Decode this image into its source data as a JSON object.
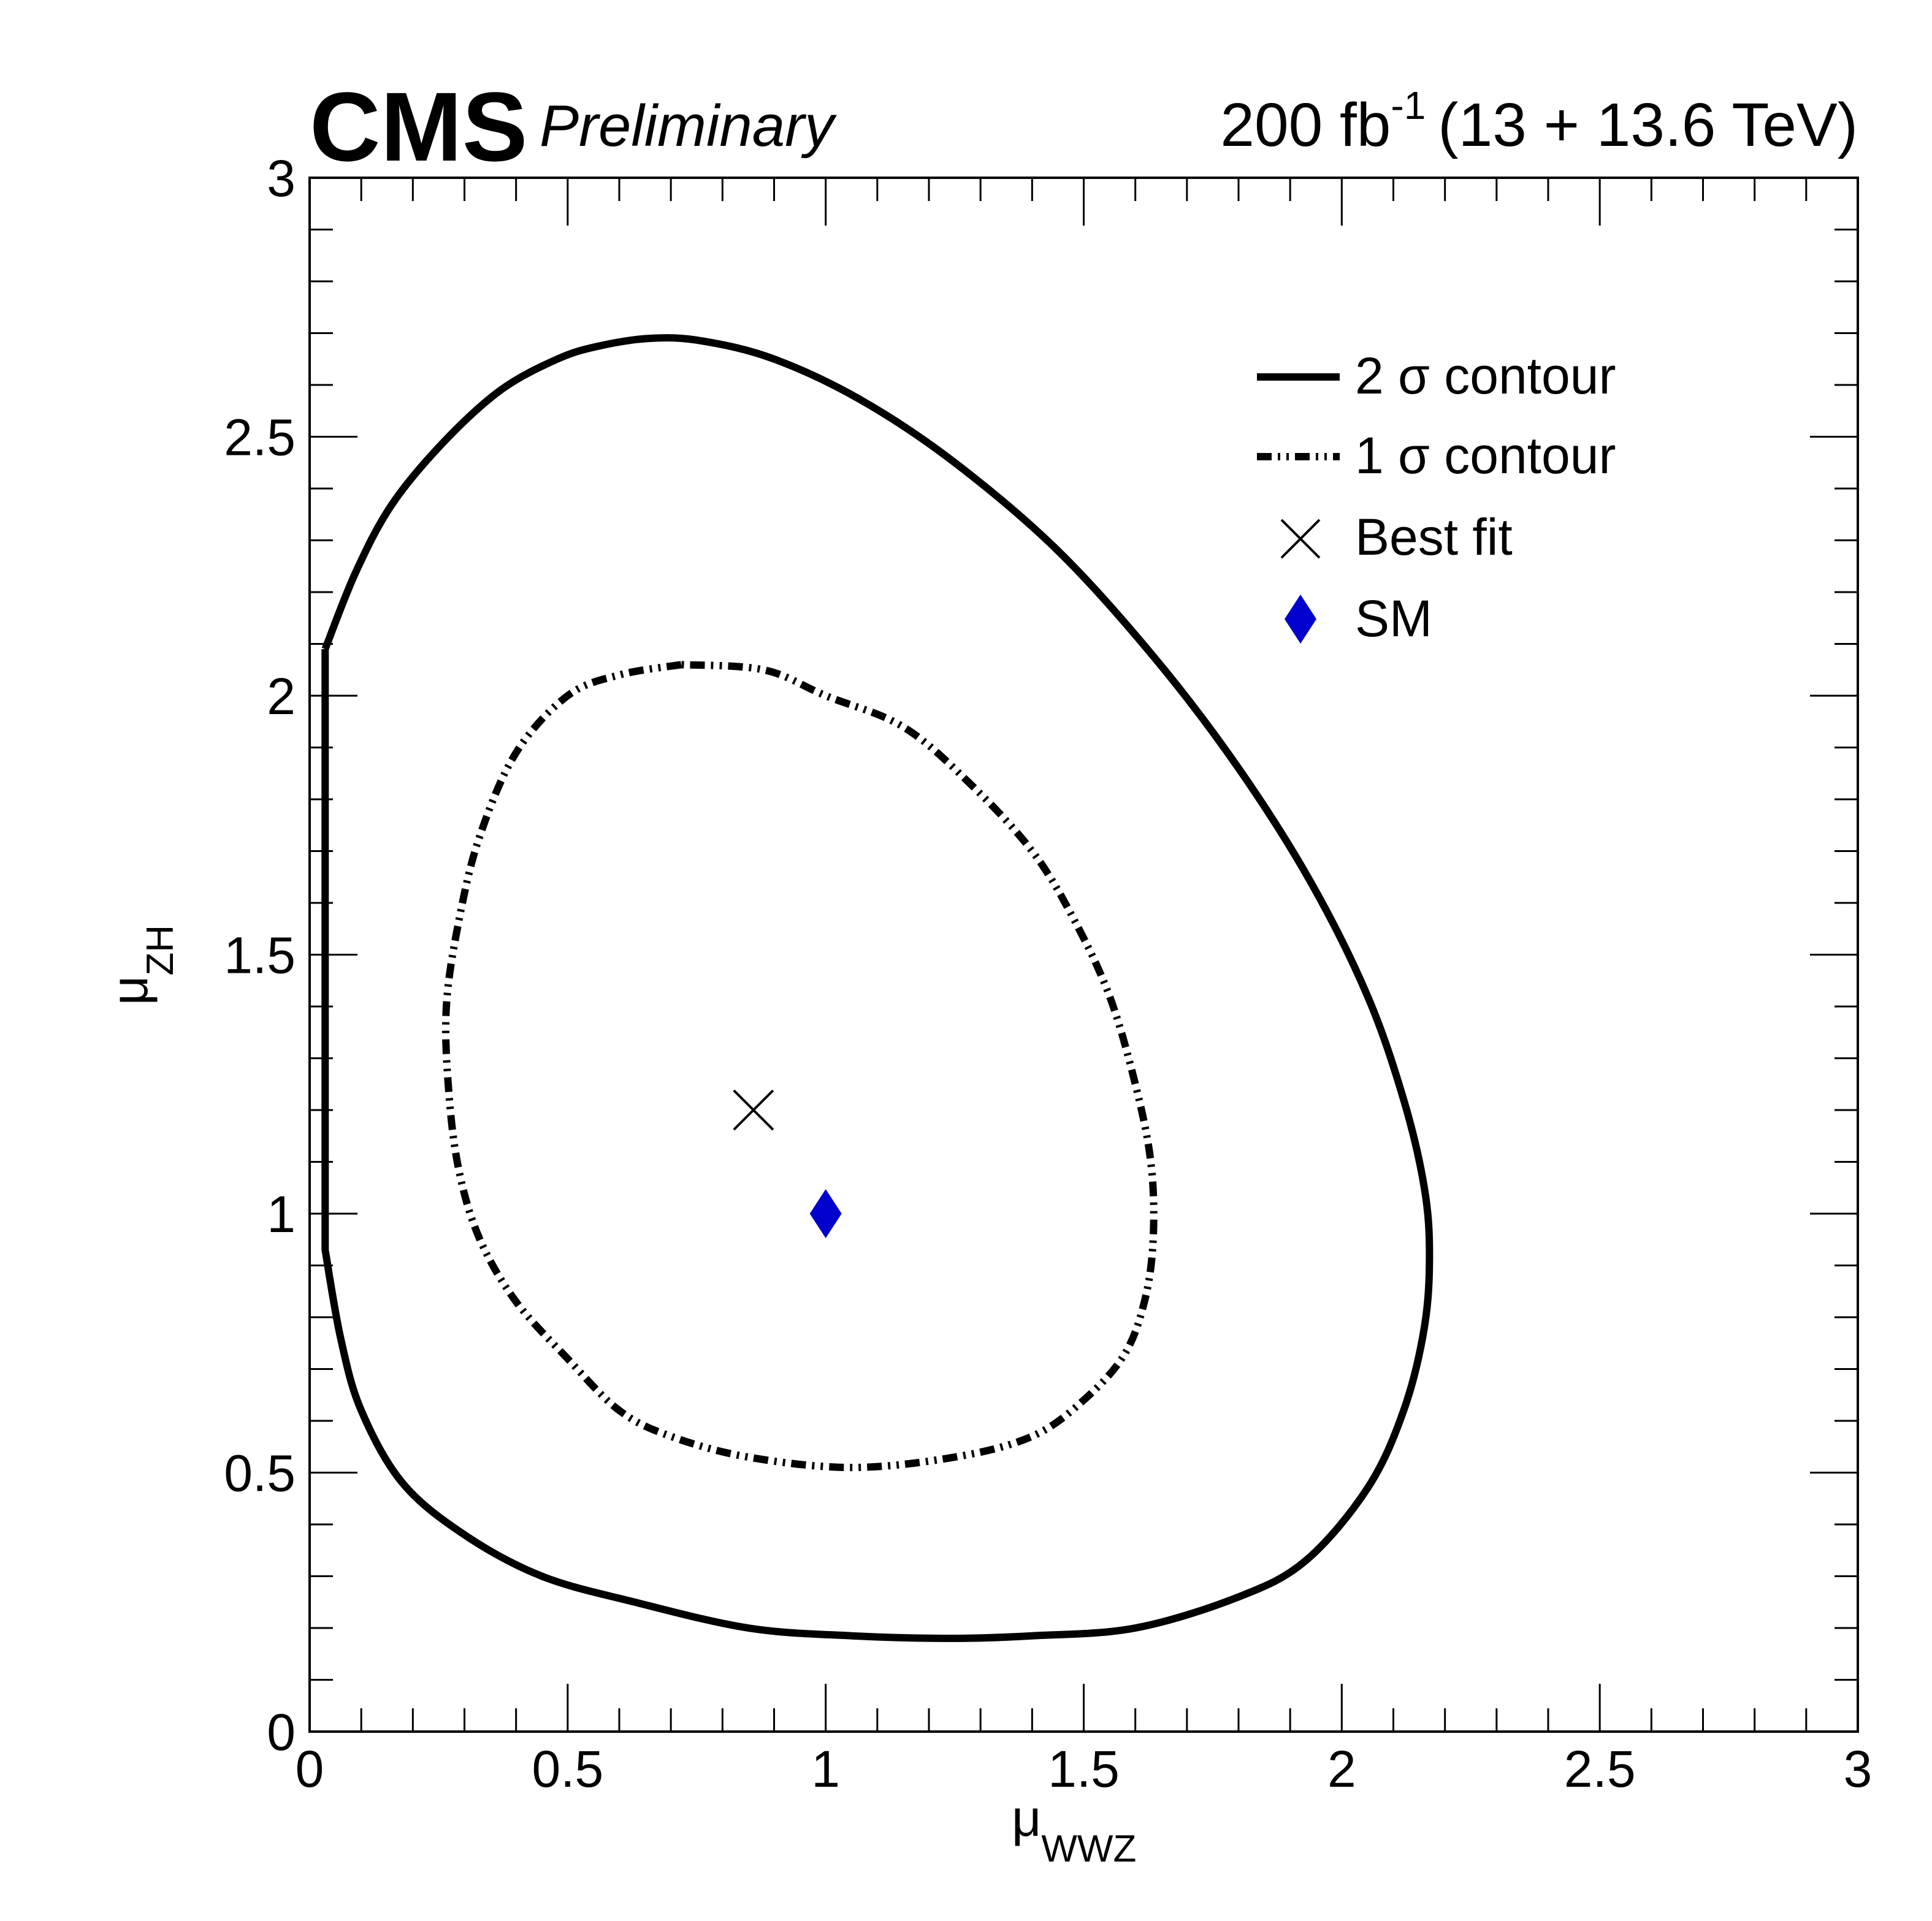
{
  "header": {
    "experiment": "CMS",
    "status": "Preliminary",
    "lumi_value": "200 fb",
    "lumi_exponent": "-1",
    "lumi_energy": "(13 + 13.6 TeV)"
  },
  "chart_data": {
    "type": "contour",
    "xlabel": {
      "symbol": "μ",
      "subscript": "WWZ"
    },
    "ylabel": {
      "symbol": "μ",
      "subscript": "ZH"
    },
    "xlim": [
      0,
      3
    ],
    "ylim": [
      0,
      3
    ],
    "x_ticks": [
      "0",
      "0.5",
      "1",
      "1.5",
      "2",
      "2.5",
      "3"
    ],
    "y_ticks": [
      "0",
      "0.5",
      "1",
      "1.5",
      "2",
      "2.5",
      "3"
    ],
    "x_tick_values": [
      0,
      0.5,
      1,
      1.5,
      2,
      2.5,
      3
    ],
    "y_tick_values": [
      0,
      0.5,
      1,
      1.5,
      2,
      2.5,
      3
    ],
    "minor_tick_step": 0.1,
    "legend_position": "top-right",
    "legend": [
      {
        "label": "2 σ contour",
        "style": "solid"
      },
      {
        "label": "1 σ contour",
        "style": "dash-dot-dot"
      },
      {
        "label": "Best fit",
        "style": "cross-marker"
      },
      {
        "label": "SM",
        "style": "diamond-marker"
      }
    ],
    "colors": {
      "contour": "#000000",
      "sm_marker": "#0000cc"
    },
    "series": [
      {
        "name": "2 σ contour",
        "style": "solid",
        "points": [
          [
            0.03,
            2.09
          ],
          [
            0.09,
            2.24
          ],
          [
            0.16,
            2.37
          ],
          [
            0.26,
            2.49
          ],
          [
            0.37,
            2.59
          ],
          [
            0.48,
            2.65
          ],
          [
            0.56,
            2.675
          ],
          [
            0.66,
            2.69
          ],
          [
            0.76,
            2.685
          ],
          [
            0.9,
            2.65
          ],
          [
            1.07,
            2.57
          ],
          [
            1.25,
            2.45
          ],
          [
            1.45,
            2.28
          ],
          [
            1.64,
            2.07
          ],
          [
            1.8,
            1.86
          ],
          [
            1.94,
            1.64
          ],
          [
            2.05,
            1.42
          ],
          [
            2.12,
            1.22
          ],
          [
            2.16,
            1.05
          ],
          [
            2.17,
            0.92
          ],
          [
            2.16,
            0.78
          ],
          [
            2.12,
            0.62
          ],
          [
            2.05,
            0.47
          ],
          [
            1.93,
            0.33
          ],
          [
            1.8,
            0.26
          ],
          [
            1.6,
            0.2
          ],
          [
            1.4,
            0.185
          ],
          [
            1.24,
            0.18
          ],
          [
            1.05,
            0.185
          ],
          [
            0.85,
            0.2
          ],
          [
            0.63,
            0.25
          ],
          [
            0.45,
            0.3
          ],
          [
            0.3,
            0.38
          ],
          [
            0.18,
            0.48
          ],
          [
            0.1,
            0.62
          ],
          [
            0.06,
            0.76
          ],
          [
            0.03,
            0.93
          ],
          [
            0.03,
            2.09
          ]
        ]
      },
      {
        "name": "1 σ contour",
        "style": "dash-dot-dot",
        "points": [
          [
            0.72,
            2.06
          ],
          [
            0.6,
            2.04
          ],
          [
            0.5,
            2.0
          ],
          [
            0.4,
            1.89
          ],
          [
            0.33,
            1.73
          ],
          [
            0.29,
            1.57
          ],
          [
            0.265,
            1.4
          ],
          [
            0.27,
            1.23
          ],
          [
            0.29,
            1.08
          ],
          [
            0.33,
            0.95
          ],
          [
            0.4,
            0.83
          ],
          [
            0.5,
            0.72
          ],
          [
            0.6,
            0.62
          ],
          [
            0.7,
            0.57
          ],
          [
            0.85,
            0.53
          ],
          [
            1.05,
            0.51
          ],
          [
            1.25,
            0.53
          ],
          [
            1.4,
            0.57
          ],
          [
            1.5,
            0.64
          ],
          [
            1.58,
            0.73
          ],
          [
            1.62,
            0.84
          ],
          [
            1.635,
            0.96
          ],
          [
            1.63,
            1.1
          ],
          [
            1.6,
            1.25
          ],
          [
            1.55,
            1.42
          ],
          [
            1.48,
            1.57
          ],
          [
            1.4,
            1.7
          ],
          [
            1.28,
            1.83
          ],
          [
            1.15,
            1.94
          ],
          [
            1.0,
            2.0
          ],
          [
            0.88,
            2.05
          ],
          [
            0.72,
            2.06
          ]
        ]
      }
    ],
    "best_fit": {
      "x": 0.86,
      "y": 1.2
    },
    "sm_point": {
      "x": 1.0,
      "y": 1.0
    }
  }
}
